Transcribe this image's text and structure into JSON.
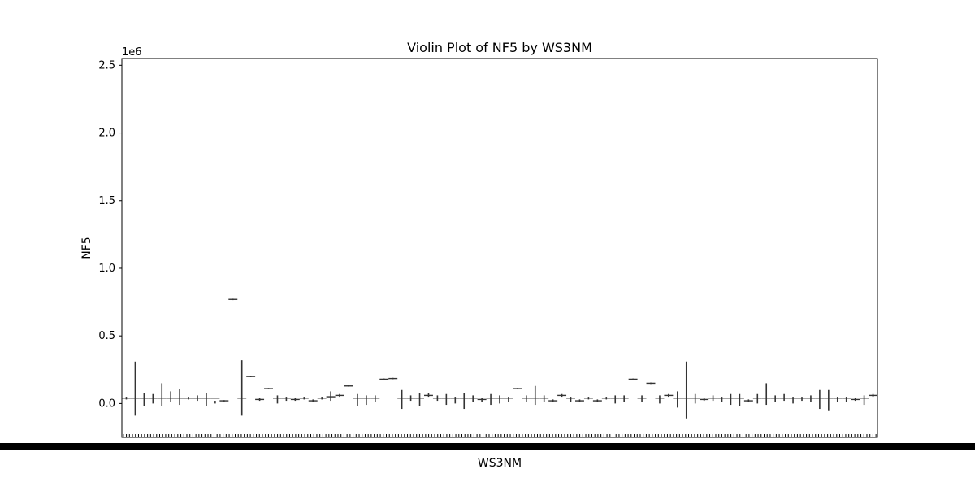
{
  "chart_data": {
    "type": "violin",
    "title": "Violin Plot of NF5 by WS3NM",
    "xlabel": "WS3NM",
    "ylabel": "NF5",
    "y_offset_label": "1e6",
    "ylim": [
      -250000,
      2550000
    ],
    "yticks": [
      0.0,
      0.5,
      1.0,
      1.5,
      2.0,
      2.5
    ],
    "grid": false,
    "legend": "none",
    "category_count": 250,
    "series": [
      {
        "values": [
          {
            "center": 40000,
            "low": 30000,
            "high": 50000
          },
          {
            "center": 40000,
            "low": -90000,
            "high": 310000
          },
          {
            "center": 40000,
            "low": -20000,
            "high": 80000
          },
          {
            "center": 40000,
            "low": 0,
            "high": 70000
          },
          {
            "center": 40000,
            "low": -20000,
            "high": 150000
          },
          {
            "center": 40000,
            "low": 10000,
            "high": 90000
          },
          {
            "center": 40000,
            "low": -10000,
            "high": 110000
          },
          {
            "center": 40000,
            "low": 30000,
            "high": 50000
          },
          {
            "center": 40000,
            "low": 20000,
            "high": 60000
          },
          {
            "center": 40000,
            "low": -20000,
            "high": 80000
          },
          {
            "center": 40000,
            "low": 0,
            "high": 20000
          },
          {
            "center": 20000,
            "low": 15000,
            "high": 25000
          },
          {
            "center": 770000,
            "low": 765000,
            "high": 775000
          },
          {
            "center": 40000,
            "low": -90000,
            "high": 320000
          },
          {
            "center": 200000,
            "low": 195000,
            "high": 205000
          },
          {
            "center": 30000,
            "low": 20000,
            "high": 40000
          },
          {
            "center": 110000,
            "low": 105000,
            "high": 115000
          },
          {
            "center": 40000,
            "low": 0,
            "high": 60000
          },
          {
            "center": 40000,
            "low": 20000,
            "high": 50000
          },
          {
            "center": 30000,
            "low": 20000,
            "high": 40000
          },
          {
            "center": 40000,
            "low": 30000,
            "high": 50000
          },
          {
            "center": 20000,
            "low": 10000,
            "high": 30000
          },
          {
            "center": 40000,
            "low": 30000,
            "high": 50000
          },
          {
            "center": 50000,
            "low": 20000,
            "high": 90000
          },
          {
            "center": 60000,
            "low": 50000,
            "high": 70000
          },
          {
            "center": 130000,
            "low": 125000,
            "high": 135000
          },
          {
            "center": 40000,
            "low": -20000,
            "high": 70000
          },
          {
            "center": 40000,
            "low": -10000,
            "high": 60000
          },
          {
            "center": 40000,
            "low": 10000,
            "high": 60000
          },
          {
            "center": 180000,
            "low": 175000,
            "high": 185000
          },
          {
            "center": 185000,
            "low": 180000,
            "high": 190000
          },
          {
            "center": 40000,
            "low": -40000,
            "high": 100000
          },
          {
            "center": 40000,
            "low": 20000,
            "high": 60000
          },
          {
            "center": 40000,
            "low": -20000,
            "high": 80000
          },
          {
            "center": 60000,
            "low": 50000,
            "high": 80000
          },
          {
            "center": 40000,
            "low": 20000,
            "high": 60000
          },
          {
            "center": 40000,
            "low": -10000,
            "high": 70000
          },
          {
            "center": 40000,
            "low": 0,
            "high": 50000
          },
          {
            "center": 40000,
            "low": -40000,
            "high": 80000
          },
          {
            "center": 40000,
            "low": 10000,
            "high": 60000
          },
          {
            "center": 30000,
            "low": 10000,
            "high": 40000
          },
          {
            "center": 40000,
            "low": -10000,
            "high": 70000
          },
          {
            "center": 40000,
            "low": 0,
            "high": 60000
          },
          {
            "center": 40000,
            "low": 10000,
            "high": 50000
          },
          {
            "center": 110000,
            "low": 105000,
            "high": 115000
          },
          {
            "center": 40000,
            "low": 10000,
            "high": 60000
          },
          {
            "center": 40000,
            "low": -10000,
            "high": 130000
          },
          {
            "center": 40000,
            "low": 10000,
            "high": 60000
          },
          {
            "center": 20000,
            "low": 10000,
            "high": 30000
          },
          {
            "center": 60000,
            "low": 50000,
            "high": 70000
          },
          {
            "center": 40000,
            "low": 10000,
            "high": 50000
          },
          {
            "center": 20000,
            "low": 10000,
            "high": 30000
          },
          {
            "center": 40000,
            "low": 30000,
            "high": 50000
          },
          {
            "center": 20000,
            "low": 10000,
            "high": 30000
          },
          {
            "center": 40000,
            "low": 30000,
            "high": 50000
          },
          {
            "center": 40000,
            "low": 0,
            "high": 60000
          },
          {
            "center": 40000,
            "low": 10000,
            "high": 60000
          },
          {
            "center": 180000,
            "low": 175000,
            "high": 185000
          },
          {
            "center": 40000,
            "low": 10000,
            "high": 60000
          },
          {
            "center": 150000,
            "low": 145000,
            "high": 155000
          },
          {
            "center": 40000,
            "low": 0,
            "high": 60000
          },
          {
            "center": 60000,
            "low": 50000,
            "high": 70000
          },
          {
            "center": 40000,
            "low": -30000,
            "high": 90000
          },
          {
            "center": 40000,
            "low": -110000,
            "high": 310000
          },
          {
            "center": 40000,
            "low": 0,
            "high": 70000
          },
          {
            "center": 30000,
            "low": 20000,
            "high": 40000
          },
          {
            "center": 40000,
            "low": 20000,
            "high": 60000
          },
          {
            "center": 40000,
            "low": 10000,
            "high": 50000
          },
          {
            "center": 40000,
            "low": -10000,
            "high": 70000
          },
          {
            "center": 40000,
            "low": -20000,
            "high": 70000
          },
          {
            "center": 20000,
            "low": 10000,
            "high": 30000
          },
          {
            "center": 40000,
            "low": 0,
            "high": 70000
          },
          {
            "center": 40000,
            "low": -10000,
            "high": 150000
          },
          {
            "center": 40000,
            "low": 10000,
            "high": 60000
          },
          {
            "center": 40000,
            "low": 20000,
            "high": 70000
          },
          {
            "center": 40000,
            "low": 0,
            "high": 50000
          },
          {
            "center": 40000,
            "low": 20000,
            "high": 50000
          },
          {
            "center": 40000,
            "low": 10000,
            "high": 60000
          },
          {
            "center": 40000,
            "low": -40000,
            "high": 100000
          },
          {
            "center": 40000,
            "low": -50000,
            "high": 100000
          },
          {
            "center": 40000,
            "low": 10000,
            "high": 50000
          },
          {
            "center": 40000,
            "low": 10000,
            "high": 50000
          },
          {
            "center": 30000,
            "low": 20000,
            "high": 40000
          },
          {
            "center": 40000,
            "low": -10000,
            "high": 60000
          },
          {
            "center": 60000,
            "low": 50000,
            "high": 70000
          }
        ]
      }
    ]
  }
}
